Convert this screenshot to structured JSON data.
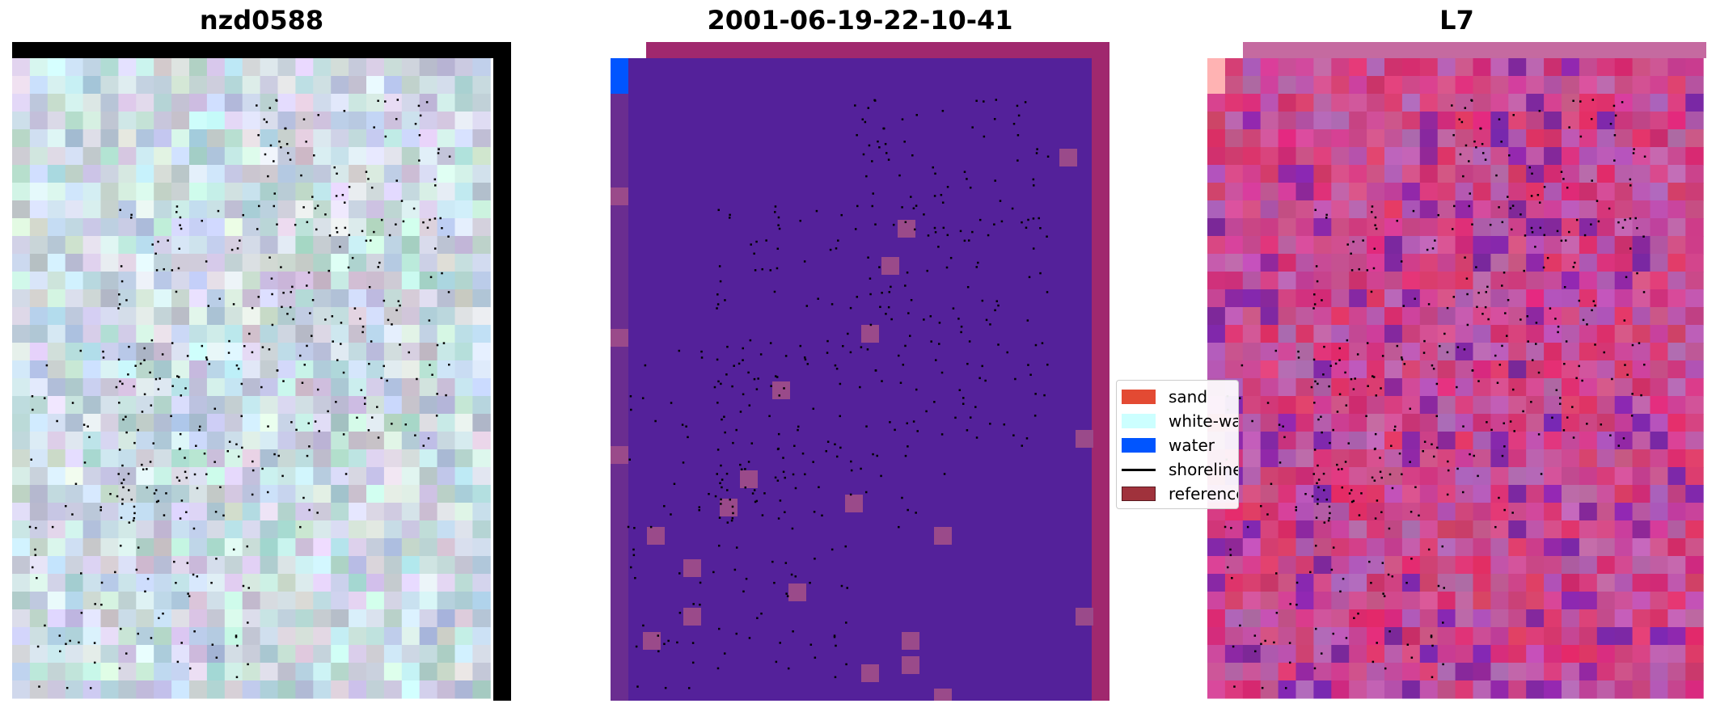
{
  "panels": [
    {
      "title": "nzd0588"
    },
    {
      "title": "2001-06-19-22-10-41"
    },
    {
      "title": "L7"
    }
  ],
  "legend": {
    "items": [
      {
        "label": "sand",
        "color": "#e34a33",
        "kind": "patch"
      },
      {
        "label": "white-water",
        "color": "#ccffff",
        "kind": "patch"
      },
      {
        "label": "water",
        "color": "#0055ff",
        "kind": "patch"
      },
      {
        "label": "shoreline",
        "color": "#000000",
        "kind": "line"
      },
      {
        "label": "reference",
        "color": "#a0323c",
        "kind": "patch"
      }
    ]
  },
  "colors": {
    "classification_background": "#54219a",
    "classification_border": "#a0286e",
    "nodata_black": "#000000"
  }
}
